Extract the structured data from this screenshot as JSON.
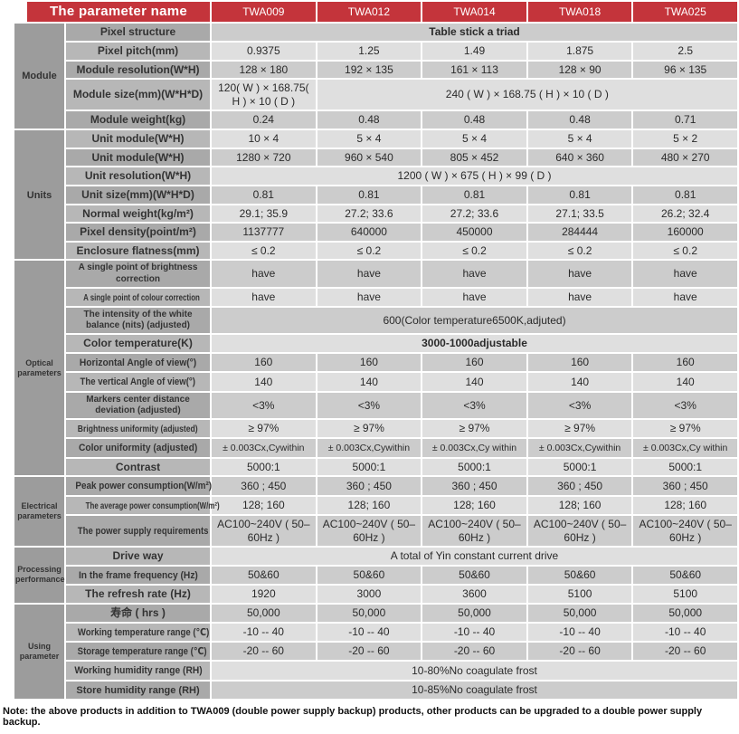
{
  "colors": {
    "header_red": "#C4343B",
    "row_light": "#DFDFDF",
    "row_medium": "#CCCCCC",
    "label_light": "#B7B7B7",
    "label_medium": "#A9A9A9",
    "group_gray": "#9C9C9C"
  },
  "header": {
    "param_col_title": "The parameter name",
    "products": [
      "TWA009",
      "TWA012",
      "TWA014",
      "TWA018",
      "TWA025"
    ]
  },
  "groups": [
    {
      "name": "Module",
      "rows": [
        {
          "label": "Pixel structure",
          "cells": [
            {
              "text": "Table stick a triad",
              "span": 5,
              "bold": true
            }
          ]
        },
        {
          "label": "Pixel pitch(mm)",
          "cells": [
            {
              "text": "0.9375"
            },
            {
              "text": "1.25"
            },
            {
              "text": "1.49"
            },
            {
              "text": "1.875"
            },
            {
              "text": "2.5"
            }
          ]
        },
        {
          "label": "Module resolution(W*H)",
          "cells": [
            {
              "text": "128 × 180"
            },
            {
              "text": "192 × 135"
            },
            {
              "text": "161 × 113"
            },
            {
              "text": "128 × 90"
            },
            {
              "text": "96 × 135"
            }
          ]
        },
        {
          "label": "Module size(mm)(W*H*D)",
          "cells": [
            {
              "text": "120( W ) × 168.75( H ) × 10 ( D )"
            },
            {
              "text": "240 ( W ) × 168.75 ( H ) × 10 ( D )",
              "span": 4
            }
          ]
        },
        {
          "label": "Module weight(kg)",
          "cells": [
            {
              "text": "0.24"
            },
            {
              "text": "0.48"
            },
            {
              "text": "0.48"
            },
            {
              "text": "0.48"
            },
            {
              "text": "0.71"
            }
          ]
        }
      ]
    },
    {
      "name": "Units",
      "rows": [
        {
          "label": "Unit module(W*H)",
          "cells": [
            {
              "text": "10 × 4"
            },
            {
              "text": "5 × 4"
            },
            {
              "text": "5 × 4"
            },
            {
              "text": "5 × 4"
            },
            {
              "text": "5 × 2"
            }
          ]
        },
        {
          "label": "Unit module(W*H)",
          "cells": [
            {
              "text": "1280 × 720"
            },
            {
              "text": "960 × 540"
            },
            {
              "text": "805 × 452"
            },
            {
              "text": "640 × 360"
            },
            {
              "text": "480 × 270"
            }
          ]
        },
        {
          "label": "Unit resolution(W*H)",
          "cells": [
            {
              "text": "1200 ( W ) × 675 ( H ) × 99 ( D )",
              "span": 5
            }
          ]
        },
        {
          "label": "Unit size(mm)(W*H*D)",
          "cells": [
            {
              "text": "0.81"
            },
            {
              "text": "0.81"
            },
            {
              "text": "0.81"
            },
            {
              "text": "0.81"
            },
            {
              "text": "0.81"
            }
          ]
        },
        {
          "label": "Normal weight(kg/m²)",
          "cells": [
            {
              "text": "29.1; 35.9"
            },
            {
              "text": "27.2; 33.6"
            },
            {
              "text": "27.2; 33.6"
            },
            {
              "text": "27.1; 33.5"
            },
            {
              "text": "26.2; 32.4"
            }
          ]
        },
        {
          "label": "Pixel density(point/m²)",
          "cells": [
            {
              "text": "1137777"
            },
            {
              "text": "640000"
            },
            {
              "text": "450000"
            },
            {
              "text": "284444"
            },
            {
              "text": "160000"
            }
          ]
        },
        {
          "label": "Enclosure flatness(mm)",
          "cells": [
            {
              "text": "≤ 0.2"
            },
            {
              "text": "≤ 0.2"
            },
            {
              "text": "≤ 0.2"
            },
            {
              "text": "≤ 0.2"
            },
            {
              "text": "≤ 0.2"
            }
          ]
        }
      ]
    },
    {
      "name": "Optical parameters",
      "rows": [
        {
          "label": "A single point of brightness correction",
          "small": true,
          "cells": [
            {
              "text": "have"
            },
            {
              "text": "have"
            },
            {
              "text": "have"
            },
            {
              "text": "have"
            },
            {
              "text": "have"
            }
          ]
        },
        {
          "label": "A single point of colour correction",
          "small": true,
          "cells": [
            {
              "text": "have"
            },
            {
              "text": "have"
            },
            {
              "text": "have"
            },
            {
              "text": "have"
            },
            {
              "text": "have"
            }
          ]
        },
        {
          "label": "The intensity of the white balance (nits) (adjusted)",
          "small": true,
          "cells": [
            {
              "text": "600(Color temperature6500K,adjuted)",
              "span": 5
            }
          ]
        },
        {
          "label": "Color temperature(K)",
          "cells": [
            {
              "text": "3000-1000adjustable",
              "span": 5,
              "bold": true
            }
          ]
        },
        {
          "label": "Horizontal Angle of view(°)",
          "cells": [
            {
              "text": "160"
            },
            {
              "text": "160"
            },
            {
              "text": "160"
            },
            {
              "text": "160"
            },
            {
              "text": "160"
            }
          ]
        },
        {
          "label": "The vertical Angle of view(°)",
          "cells": [
            {
              "text": "140"
            },
            {
              "text": "140"
            },
            {
              "text": "140"
            },
            {
              "text": "140"
            },
            {
              "text": "140"
            }
          ]
        },
        {
          "label": "Markers center distance deviation (adjusted)",
          "small": true,
          "cells": [
            {
              "text": "<3%"
            },
            {
              "text": "<3%"
            },
            {
              "text": "<3%"
            },
            {
              "text": "<3%"
            },
            {
              "text": "<3%"
            }
          ]
        },
        {
          "label": "Brightness uniformity (adjusted)",
          "cells": [
            {
              "text": "≥ 97%"
            },
            {
              "text": "≥ 97%"
            },
            {
              "text": "≥ 97%"
            },
            {
              "text": "≥ 97%"
            },
            {
              "text": "≥ 97%"
            }
          ]
        },
        {
          "label": "Color uniformity (adjusted)",
          "values_small": true,
          "cells": [
            {
              "text": "± 0.003Cx,Cywithin"
            },
            {
              "text": "± 0.003Cx,Cywithin"
            },
            {
              "text": "± 0.003Cx,Cy within"
            },
            {
              "text": "± 0.003Cx,Cywithin"
            },
            {
              "text": "± 0.003Cx,Cy within"
            }
          ]
        },
        {
          "label": "Contrast",
          "cells": [
            {
              "text": "5000:1"
            },
            {
              "text": "5000:1"
            },
            {
              "text": "5000:1"
            },
            {
              "text": "5000:1"
            },
            {
              "text": "5000:1"
            }
          ]
        }
      ]
    },
    {
      "name": "Electrical parameters",
      "rows": [
        {
          "label": "Peak power consumption(W/m²)",
          "cells": [
            {
              "text": "360 ; 450"
            },
            {
              "text": "360 ; 450"
            },
            {
              "text": "360 ; 450"
            },
            {
              "text": "360 ; 450"
            },
            {
              "text": "360 ; 450"
            }
          ]
        },
        {
          "label": "The average power consumption(W/m²)",
          "small": true,
          "cells": [
            {
              "text": "128; 160"
            },
            {
              "text": "128; 160"
            },
            {
              "text": "128; 160"
            },
            {
              "text": "128; 160"
            },
            {
              "text": "128; 160"
            }
          ]
        },
        {
          "label": "The power supply requirements",
          "cells": [
            {
              "text": "AC100~240V ( 50–60Hz )"
            },
            {
              "text": "AC100~240V ( 50–60Hz )"
            },
            {
              "text": "AC100~240V ( 50–60Hz )"
            },
            {
              "text": "AC100~240V ( 50–60Hz )"
            },
            {
              "text": "AC100~240V ( 50–60Hz )"
            }
          ]
        }
      ]
    },
    {
      "name": "Processing performance",
      "rows": [
        {
          "label": "Drive way",
          "cells": [
            {
              "text": "A total of Yin constant current drive",
              "span": 5
            }
          ]
        },
        {
          "label": "In the frame frequency (Hz)",
          "cells": [
            {
              "text": "50&60"
            },
            {
              "text": "50&60"
            },
            {
              "text": "50&60"
            },
            {
              "text": "50&60"
            },
            {
              "text": "50&60"
            }
          ]
        },
        {
          "label": "The refresh rate (Hz)",
          "cells": [
            {
              "text": "1920"
            },
            {
              "text": "3000"
            },
            {
              "text": "3600"
            },
            {
              "text": "5100"
            },
            {
              "text": "5100"
            }
          ]
        }
      ]
    },
    {
      "name": "Using parameter",
      "rows": [
        {
          "label": "寿命 ( hrs )",
          "cells": [
            {
              "text": "50,000"
            },
            {
              "text": "50,000"
            },
            {
              "text": "50,000"
            },
            {
              "text": "50,000"
            },
            {
              "text": "50,000"
            }
          ]
        },
        {
          "label": "Working temperature range (℃)",
          "cells": [
            {
              "text": "-10 -- 40"
            },
            {
              "text": "-10 -- 40"
            },
            {
              "text": "-10 -- 40"
            },
            {
              "text": "-10 -- 40"
            },
            {
              "text": "-10 -- 40"
            }
          ]
        },
        {
          "label": "Storage temperature range (℃)",
          "cells": [
            {
              "text": "-20 -- 60"
            },
            {
              "text": "-20 -- 60"
            },
            {
              "text": "-20 -- 60"
            },
            {
              "text": "-20 -- 60"
            },
            {
              "text": "-20 -- 60"
            }
          ]
        },
        {
          "label": "Working humidity range (RH)",
          "cells": [
            {
              "text": "10-80%No coagulate frost",
              "span": 5
            }
          ]
        },
        {
          "label": "Store humidity range (RH)",
          "cells": [
            {
              "text": "10-85%No coagulate frost",
              "span": 5
            }
          ]
        }
      ]
    }
  ],
  "note": "Note: the above products in addition to TWA009 (double power supply backup) products, other products can be upgraded to a double power supply backup."
}
